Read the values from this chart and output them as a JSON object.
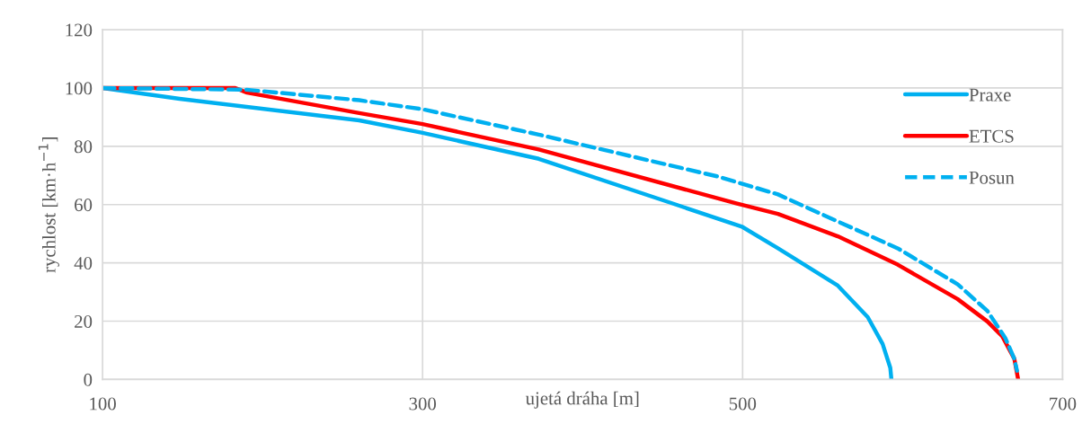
{
  "chart_data": {
    "type": "line",
    "xlabel": "ujetá dráha [m]",
    "ylabel": "rychlost [km·h$^{−1}$]",
    "xlim": [
      100,
      700
    ],
    "xticks": [
      100,
      300,
      500,
      700
    ],
    "ylim": [
      0,
      120
    ],
    "yticks": [
      0,
      20,
      40,
      60,
      80,
      100,
      120
    ],
    "grid": true,
    "legend": "top right",
    "marker": "none",
    "series": [
      {
        "name": "Praxe",
        "color": "#00b0f0",
        "line_style": "solid",
        "x": [
          100,
          148.2,
          260.4,
          300,
          372.6,
          456.7,
          500,
          522.1,
          559.5,
          578.2,
          587.5,
          592.3,
          593
        ],
        "values": [
          100,
          96.3,
          88.9,
          84.6,
          75.7,
          60.3,
          52.3,
          45.0,
          32.2,
          21.4,
          12.2,
          4,
          0
        ]
      },
      {
        "name": "ETCS",
        "color": "#ff0000",
        "line_style": "solid",
        "x": [
          100,
          183,
          190.3,
          260.4,
          300,
          372.6,
          496,
          522.1,
          559.5,
          596.9,
          634.3,
          653,
          662.3,
          669.8,
          672.2
        ],
        "values": [
          100,
          100,
          98.4,
          91.4,
          87.6,
          78.9,
          60.4,
          56.8,
          49.1,
          39.4,
          27.6,
          19.9,
          14.8,
          7.1,
          0
        ]
      },
      {
        "name": "Posun",
        "color": "#00b0f0",
        "line_style": "dashed",
        "x": [
          100,
          190,
          260.4,
          300,
          372.6,
          484.7,
          522.1,
          559.5,
          596.9,
          634.3,
          653,
          664.2,
          669.8,
          671.5
        ],
        "values": [
          100,
          99.4,
          95.8,
          92.7,
          84,
          69.6,
          63.5,
          54.2,
          45.0,
          32.7,
          23.5,
          14.2,
          7.1,
          3
        ]
      }
    ]
  }
}
